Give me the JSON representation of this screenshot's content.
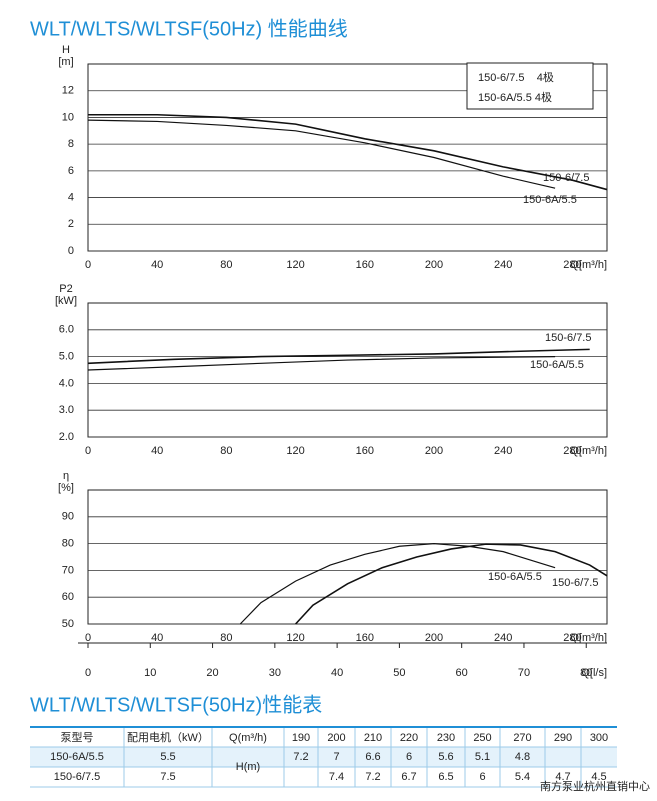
{
  "header": {
    "title": "WLT/WLTS/WLTSF(50Hz) 性能曲线"
  },
  "chart_data": [
    {
      "type": "line",
      "ylabel": "H",
      "yunit": "[m]",
      "xlabel": "Q[m³/h]",
      "xlim": [
        0,
        300
      ],
      "xticks": [
        0,
        40,
        80,
        120,
        160,
        200,
        240,
        280
      ],
      "ylim": [
        0,
        14
      ],
      "yticks": [
        0,
        2,
        4,
        6,
        8,
        10,
        12
      ],
      "grid": true,
      "legend": [
        "150-6/7.5    4极",
        "150-6A/5.5 4极"
      ],
      "series": [
        {
          "name": "150-6/7.5",
          "color": "#111111",
          "x": [
            0,
            40,
            80,
            120,
            160,
            200,
            240,
            280,
            300
          ],
          "values": [
            10.2,
            10.2,
            10.0,
            9.5,
            8.4,
            7.5,
            6.3,
            5.3,
            4.6
          ]
        },
        {
          "name": "150-6A/5.5",
          "color": "#111111",
          "x": [
            0,
            40,
            80,
            120,
            160,
            200,
            240,
            270
          ],
          "values": [
            9.8,
            9.7,
            9.4,
            9.0,
            8.1,
            7.0,
            5.6,
            4.7
          ]
        }
      ]
    },
    {
      "type": "line",
      "ylabel": "P2",
      "yunit": "[kW]",
      "xlabel": "Q[m³/h]",
      "xlim": [
        0,
        300
      ],
      "xticks": [
        0,
        40,
        80,
        120,
        160,
        200,
        240,
        280
      ],
      "ylim": [
        2,
        7
      ],
      "yticks": [
        {
          "value": 2,
          "label": "2.0"
        },
        {
          "value": 3,
          "label": "3.0"
        },
        {
          "value": 4,
          "label": "4.0"
        },
        {
          "value": 5,
          "label": "5.0"
        },
        {
          "value": 6,
          "label": "6.0"
        }
      ],
      "grid": true,
      "series": [
        {
          "name": "150-6/7.5",
          "color": "#111111",
          "x": [
            0,
            50,
            100,
            150,
            200,
            250,
            290
          ],
          "values": [
            4.75,
            4.9,
            5.0,
            5.05,
            5.1,
            5.2,
            5.27
          ]
        },
        {
          "name": "150-6A/5.5",
          "color": "#111111",
          "x": [
            0,
            50,
            100,
            150,
            200,
            270
          ],
          "values": [
            4.5,
            4.62,
            4.75,
            4.87,
            4.95,
            5.0
          ]
        }
      ]
    },
    {
      "type": "line",
      "ylabel": "η",
      "yunit": "[%]",
      "xlabel": "Q[m³/h]",
      "xlim": [
        0,
        300
      ],
      "xticks": [
        0,
        40,
        80,
        120,
        160,
        200,
        240,
        280
      ],
      "ylim": [
        50,
        100
      ],
      "yticks": [
        50,
        60,
        70,
        80,
        90
      ],
      "grid": true,
      "x2label": "Q[l/s]",
      "x2lim": [
        0,
        83.333
      ],
      "x2ticks": [
        0,
        10,
        20,
        30,
        40,
        50,
        60,
        70,
        80
      ],
      "series": [
        {
          "name": "150-6/7.5",
          "color": "#111111",
          "x": [
            120,
            130,
            150,
            170,
            190,
            210,
            230,
            250,
            270,
            290,
            300
          ],
          "values": [
            50,
            57,
            65,
            71,
            75,
            78,
            79.8,
            79.5,
            77,
            72,
            68
          ]
        },
        {
          "name": "150-6A/5.5",
          "color": "#111111",
          "x": [
            88,
            100,
            120,
            140,
            160,
            180,
            200,
            220,
            240,
            270
          ],
          "values": [
            50,
            58,
            66,
            72,
            76,
            79,
            80,
            79,
            77,
            71
          ]
        }
      ]
    }
  ],
  "table": {
    "title": "WLT/WLTS/WLTSF(50Hz)性能表",
    "header": [
      "泵型号",
      "配用电机（kW）",
      "Q(m³/h)",
      "190",
      "200",
      "210",
      "220",
      "230",
      "250",
      "270",
      "290",
      "300"
    ],
    "hlabel": "H(m)",
    "rows": [
      [
        "150-6A/5.5",
        "5.5",
        "7.2",
        "7",
        "6.6",
        "6",
        "5.6",
        "5.1",
        "4.8",
        null,
        null
      ],
      [
        "150-6/7.5",
        "7.5",
        null,
        "7.4",
        "7.2",
        "6.7",
        "6.5",
        "6",
        "5.4",
        "4.7",
        "4.5"
      ]
    ]
  },
  "watermark": "南方泵业杭州直销中心"
}
